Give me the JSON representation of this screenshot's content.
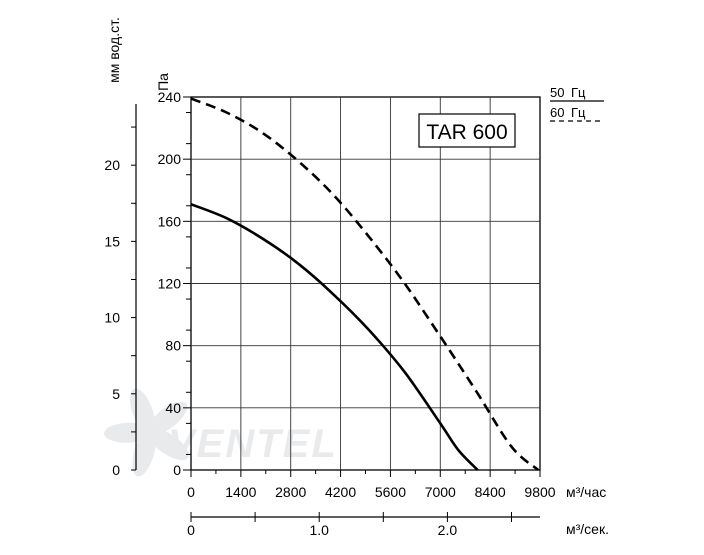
{
  "chart_data": {
    "type": "line",
    "model_label": "TAR 600",
    "watermark": "VENTEL",
    "x_unit_label": "м³/час",
    "x2_unit_label": "м³/сек.",
    "y_unit_label": "Па",
    "y2_unit_label": "мм вод.ст.",
    "xlim": [
      0,
      9800
    ],
    "ylim": [
      0,
      240
    ],
    "x_ticks": [
      "0",
      "1400",
      "2800",
      "4200",
      "5600",
      "7000",
      "8400",
      "9800"
    ],
    "x_tick_values": [
      0,
      1400,
      2800,
      4200,
      5600,
      7000,
      8400,
      9800
    ],
    "y_ticks": [
      "0",
      "40",
      "80",
      "120",
      "160",
      "200",
      "240"
    ],
    "y_tick_values": [
      0,
      40,
      80,
      120,
      160,
      200,
      240
    ],
    "x2_ticks": [
      "0",
      "1.0",
      "2.0"
    ],
    "x2_tick_values": [
      0,
      1.0,
      2.0
    ],
    "y2_ticks": [
      "0",
      "5",
      "10",
      "15",
      "20"
    ],
    "y2_tick_values": [
      0,
      5,
      10,
      15,
      20
    ],
    "legend": [
      {
        "freq": "50",
        "unit": "Гц",
        "style": "solid"
      },
      {
        "freq": "60",
        "unit": "Гц",
        "style": "dashed"
      }
    ],
    "series": [
      {
        "name": "50 Гц",
        "style": "solid",
        "x": [
          0,
          1000,
          2000,
          3000,
          4000,
          5000,
          6000,
          7000,
          7500,
          8050
        ],
        "y": [
          171,
          162,
          149,
          133,
          113,
          90,
          63,
          30,
          13,
          0
        ]
      },
      {
        "name": "60 Гц",
        "style": "dashed",
        "x": [
          0,
          1000,
          2000,
          3000,
          4000,
          5000,
          6000,
          7000,
          8000,
          9000,
          9750
        ],
        "y": [
          239,
          230,
          217,
          199,
          177,
          150,
          120,
          86,
          51,
          15,
          0
        ]
      }
    ]
  }
}
